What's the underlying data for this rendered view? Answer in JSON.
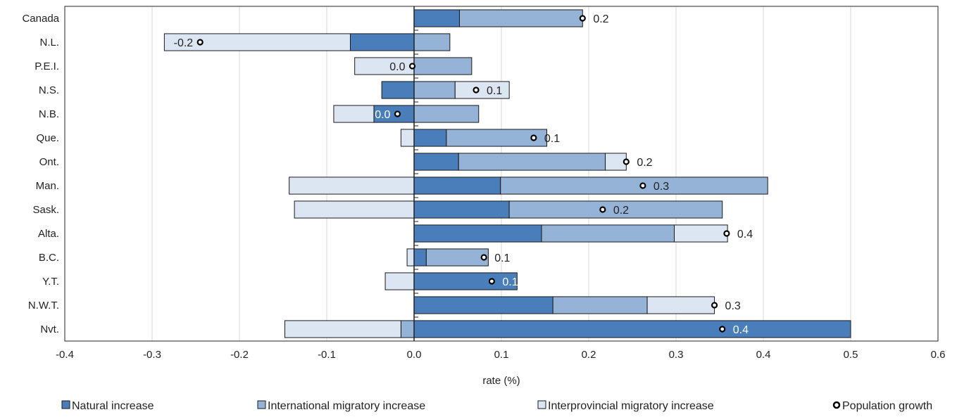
{
  "chart_data": {
    "type": "bar",
    "orientation": "horizontal",
    "stacked": true,
    "categories": [
      "Canada",
      "N.L.",
      "P.E.I.",
      "N.S.",
      "N.B.",
      "Que.",
      "Ont.",
      "Man.",
      "Sask.",
      "Alta.",
      "B.C.",
      "Y.T.",
      "N.W.T.",
      "Nvt."
    ],
    "series": [
      {
        "name": "Natural increase",
        "color": "#4a7ebb",
        "values": [
          0.052,
          -0.073,
          0.0,
          -0.037,
          -0.046,
          0.037,
          0.051,
          0.099,
          0.109,
          0.146,
          0.014,
          0.118,
          0.159,
          0.5
        ]
      },
      {
        "name": "International migratory increase",
        "color": "#95b3d7",
        "values": [
          0.141,
          0.041,
          0.066,
          0.047,
          0.074,
          0.115,
          0.168,
          0.306,
          0.244,
          0.152,
          0.071,
          0.0,
          0.108,
          -0.015
        ]
      },
      {
        "name": "Interprovincial migratory increase",
        "color": "#dce6f2",
        "values": [
          0.0,
          -0.213,
          -0.068,
          0.062,
          -0.046,
          -0.015,
          0.024,
          -0.143,
          -0.137,
          0.061,
          -0.008,
          -0.033,
          0.077,
          -0.133
        ]
      }
    ],
    "population_growth": {
      "name": "Population growth",
      "values": [
        0.193,
        -0.245,
        -0.002,
        0.071,
        -0.019,
        0.137,
        0.243,
        0.262,
        0.216,
        0.358,
        0.08,
        0.089,
        0.344,
        0.353
      ],
      "labels": [
        "0.2",
        "-0.2",
        "0.0",
        "0.1",
        "0.0",
        "0.1",
        "0.2",
        "0.3",
        "0.2",
        "0.4",
        "0.1",
        "0.1",
        "0.3",
        "0.4"
      ],
      "label_on_bar": [
        false,
        false,
        false,
        false,
        true,
        false,
        false,
        false,
        false,
        false,
        false,
        true,
        false,
        true
      ]
    },
    "xlabel": "rate (%)",
    "ylabel": "",
    "xlim": [
      -0.4,
      0.6
    ],
    "xticks": [
      -0.4,
      -0.3,
      -0.2,
      -0.1,
      0.0,
      0.1,
      0.2,
      0.3,
      0.4,
      0.5,
      0.6
    ],
    "xtick_labels": [
      "-0.4",
      "-0.3",
      "-0.2",
      "-0.1",
      "0.0",
      "0.1",
      "0.2",
      "0.3",
      "0.4",
      "0.5",
      "0.6"
    ],
    "grid": "vertical",
    "legend_position": "bottom"
  }
}
